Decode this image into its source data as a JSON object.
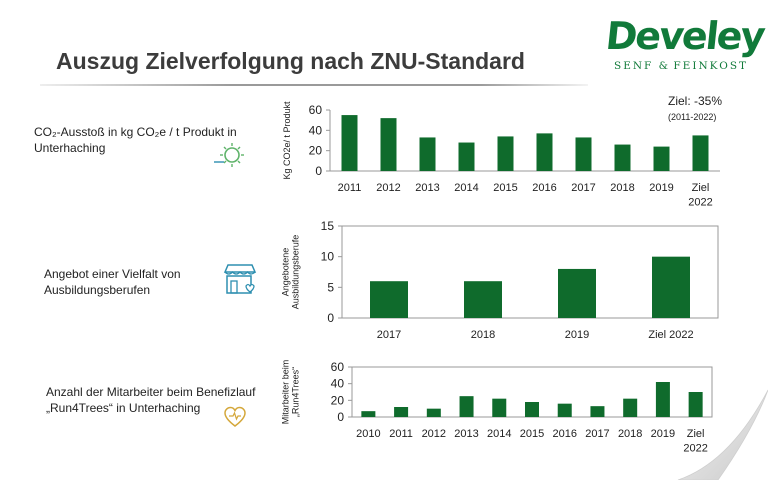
{
  "title": "Auszug Zielverfolgung nach ZNU-Standard",
  "logo": {
    "name": "Develey",
    "sub": "Senf & Feinkost"
  },
  "colors": {
    "bar": "#0f6b2c",
    "title": "#3c3c3c",
    "logo": "#117a3a",
    "icon": "#2e8fb0",
    "icon2": "#d4a73a"
  },
  "rows": [
    {
      "label": "CO₂-Ausstoß in kg CO₂e / t Produkt in Unterhaching",
      "icon": "sun-cloud-icon"
    },
    {
      "label": "Angebot einer Vielfalt von Ausbildungsberufen",
      "icon": "shop-icon"
    },
    {
      "label": "Anzahl der Mitarbeiter beim Benefizlauf „Run4Trees“ in Unterhaching",
      "icon": "heart-icon"
    }
  ],
  "annotation": {
    "main": "Ziel: -35%",
    "sub": "(2011-2022)"
  },
  "chart_data": [
    {
      "type": "bar",
      "ylabel": "Kg CO2e/ t Produkt",
      "ylim": [
        0,
        60
      ],
      "yticks": [
        0,
        20,
        40,
        60
      ],
      "categories": [
        "2011",
        "2012",
        "2013",
        "2014",
        "2015",
        "2016",
        "2017",
        "2018",
        "2019",
        "Ziel 2022"
      ],
      "values": [
        55,
        52,
        33,
        28,
        34,
        37,
        33,
        26,
        24,
        35
      ],
      "grid": false
    },
    {
      "type": "bar",
      "ylabel": "Angebotene Ausbildungsberufe",
      "ylim": [
        0,
        15
      ],
      "yticks": [
        0,
        5,
        10,
        15
      ],
      "categories": [
        "2017",
        "2018",
        "2019",
        "Ziel 2022"
      ],
      "values": [
        6,
        6,
        8,
        10
      ],
      "grid": false
    },
    {
      "type": "bar",
      "ylabel": "Mitarbeiter beim „Run4Trees“",
      "ylim": [
        0,
        60
      ],
      "yticks": [
        0,
        20,
        40,
        60
      ],
      "categories": [
        "2010",
        "2011",
        "2012",
        "2013",
        "2014",
        "2015",
        "2016",
        "2017",
        "2018",
        "2019",
        "Ziel 2022"
      ],
      "values": [
        7,
        12,
        10,
        25,
        22,
        18,
        16,
        13,
        22,
        42,
        30
      ],
      "grid": false
    }
  ]
}
